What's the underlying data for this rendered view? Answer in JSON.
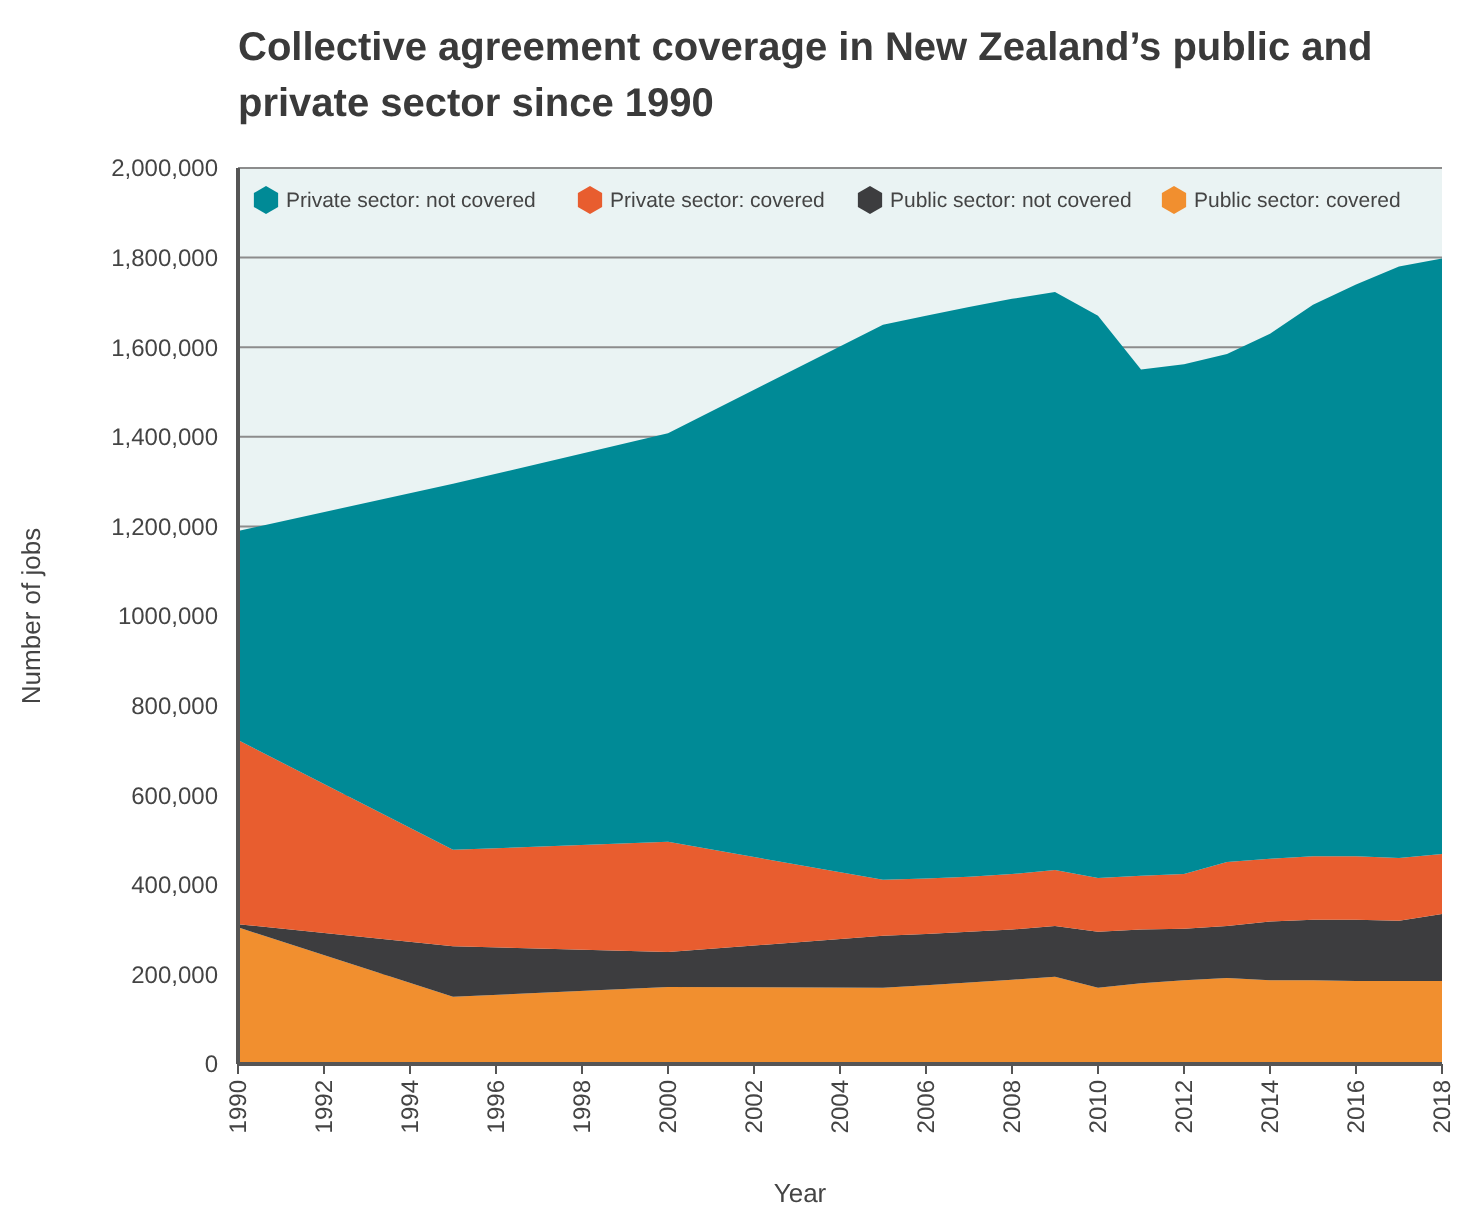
{
  "chart_data": {
    "type": "area",
    "stacked": true,
    "title": "Collective agreement coverage in New Zealand’s public and private sector since 1990",
    "xlabel": "Year",
    "ylabel": "Number of jobs",
    "x": [
      1990,
      1995,
      2000,
      2005,
      2006,
      2007,
      2008,
      2009,
      2010,
      2011,
      2012,
      2013,
      2014,
      2015,
      2016,
      2017,
      2018
    ],
    "series": [
      {
        "name": "Public sector: covered",
        "color": "#f18f2f",
        "values": [
          305000,
          150000,
          172000,
          170000,
          176000,
          182000,
          188000,
          195000,
          170000,
          180000,
          187000,
          192000,
          187000,
          187000,
          185000,
          185000,
          185000
        ]
      },
      {
        "name": "Public sector: not covered",
        "color": "#3d3d3f",
        "values": [
          7000,
          113000,
          78000,
          116000,
          114000,
          113000,
          112000,
          113000,
          125000,
          120000,
          115000,
          116000,
          131000,
          135000,
          137000,
          135000,
          150000
        ]
      },
      {
        "name": "Private sector: covered",
        "color": "#e85d2f",
        "values": [
          411000,
          215000,
          246000,
          125000,
          124000,
          123000,
          124000,
          125000,
          120000,
          120000,
          122000,
          143000,
          140000,
          142000,
          142000,
          140000,
          134000
        ]
      },
      {
        "name": "Private sector: not covered",
        "color": "#008a96",
        "values": [
          467000,
          817000,
          912000,
          1239000,
          1256000,
          1272000,
          1284000,
          1290000,
          1255000,
          1130000,
          1138000,
          1134000,
          1172000,
          1231000,
          1276000,
          1320000,
          1329000
        ]
      }
    ],
    "xlim": [
      1990,
      2018
    ],
    "xticks": [
      1990,
      1992,
      1994,
      1996,
      1998,
      2000,
      2002,
      2004,
      2006,
      2008,
      2010,
      2012,
      2014,
      2016,
      2018
    ],
    "ylim": [
      0,
      2000000
    ],
    "yticks": [
      0,
      {
        "value": 200000,
        "label": "200,000"
      },
      {
        "value": 400000,
        "label": "400,000"
      },
      {
        "value": 600000,
        "label": "600,000"
      },
      {
        "value": 800000,
        "label": "800,000"
      },
      {
        "value": 1000000,
        "label": "1000,000"
      },
      {
        "value": 1200000,
        "label": "1,200,000"
      },
      {
        "value": 1400000,
        "label": "1,400,000"
      },
      {
        "value": 1600000,
        "label": "1,600,000"
      },
      {
        "value": 1800000,
        "label": "1,800,000"
      },
      {
        "value": 2000000,
        "label": "2,000,000"
      }
    ],
    "grid": "y",
    "legend": "top"
  }
}
